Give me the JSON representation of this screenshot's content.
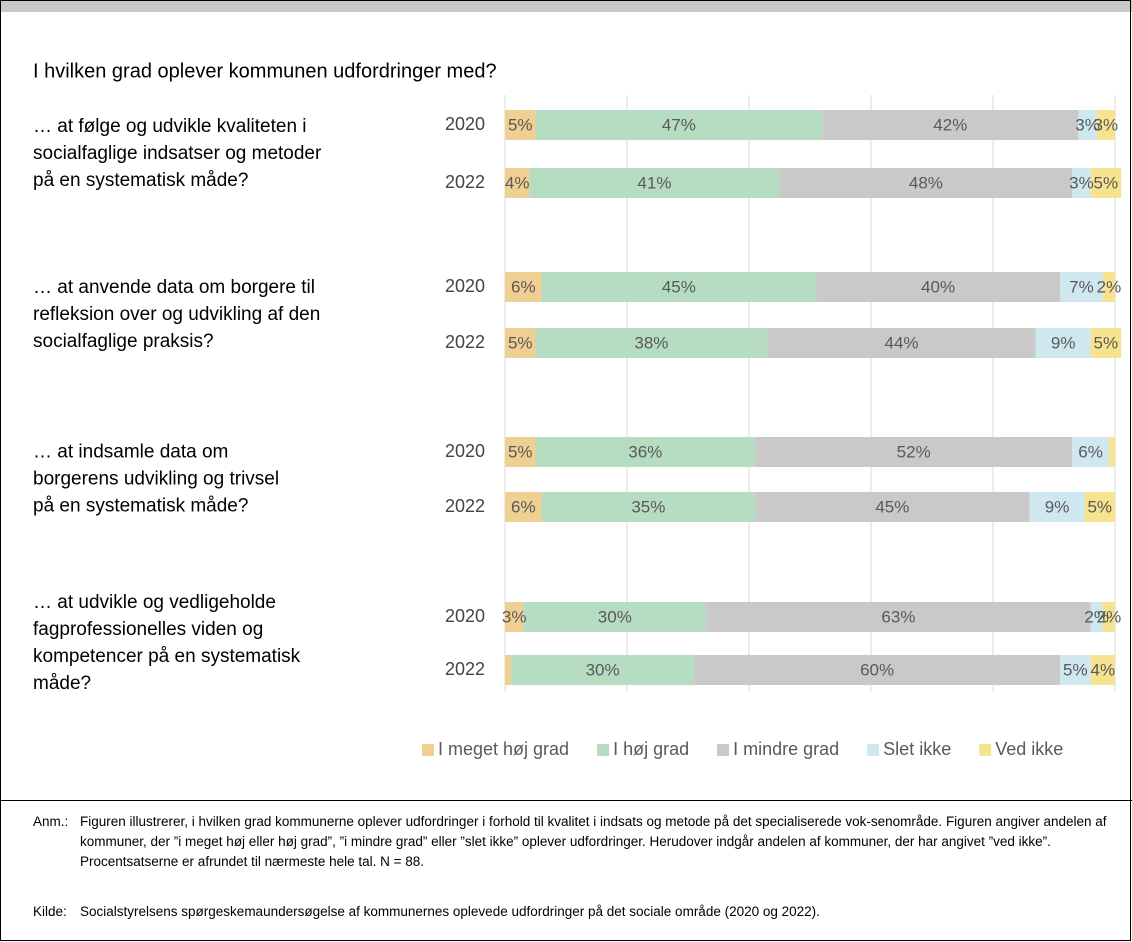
{
  "chart_data": {
    "type": "stacked-barh",
    "subtitle": "I hvilken grad oplever kommunen udfordringer med?",
    "groups": [
      {
        "label": [
          "… at følge og udvikle kvaliteten i",
          "socialfaglige indsatser og metoder",
          "på en systematisk måde?"
        ]
      },
      {
        "label": [
          "… at anvende data om borgere til",
          "refleksion over og udvikling af den",
          "socialfaglige praksis?"
        ]
      },
      {
        "label": [
          "… at indsamle data om",
          "borgerens udvikling og trivsel",
          "på en systematisk måde?"
        ]
      },
      {
        "label": [
          " … at udvikle og vedligeholde",
          "fagprofessionelles viden og",
          "kompetencer på en systematisk",
          "måde?"
        ]
      }
    ],
    "categories": [
      "2020",
      "2022",
      "2020",
      "2022",
      "2020",
      "2022",
      "2020",
      "2022"
    ],
    "series": [
      {
        "name": "I meget høj grad",
        "color": "#f0cf92",
        "values": [
          5,
          4,
          6,
          5,
          5,
          6,
          3,
          1
        ],
        "value_labels": [
          "5%",
          "4%",
          "6%",
          "5%",
          "5%",
          "6%",
          "3%",
          null
        ]
      },
      {
        "name": "I høj grad",
        "color": "#b6dcc1",
        "values": [
          47,
          41,
          45,
          38,
          36,
          35,
          30,
          30
        ],
        "value_labels": [
          "47%",
          "41%",
          "45%",
          "38%",
          "36%",
          "35%",
          "30%",
          "30%"
        ]
      },
      {
        "name": "I mindre grad",
        "color": "#c9c9c9",
        "values": [
          42,
          48,
          40,
          44,
          52,
          45,
          63,
          60
        ],
        "value_labels": [
          "42%",
          "48%",
          "40%",
          "44%",
          "52%",
          "45%",
          "63%",
          "60%"
        ]
      },
      {
        "name": "Slet ikke",
        "color": "#cfe8f0",
        "values": [
          3,
          3,
          7,
          9,
          6,
          9,
          2,
          5
        ],
        "value_labels": [
          "3%",
          "3%",
          "7%",
          "9%",
          "6%",
          "9%",
          "2%",
          "5%"
        ]
      },
      {
        "name": "Ved ikke",
        "color": "#f5e38f",
        "values": [
          3,
          5,
          2,
          5,
          1,
          5,
          2,
          4
        ],
        "value_labels": [
          "3%",
          "5%",
          "2%",
          "5%",
          null,
          "5%",
          "2%",
          "4%"
        ]
      }
    ],
    "xlim": [
      0,
      100
    ],
    "xticks": [
      0,
      20,
      40,
      60,
      80,
      100
    ],
    "grid": true,
    "legend": "bottom"
  },
  "notes": {
    "anm_label": "Anm.:",
    "anm_text": "Figuren illustrerer, i hvilken grad kommunerne oplever udfordringer i forhold til kvalitet i indsats og metode på det specialiserede vok-senområde. Figuren angiver andelen af kommuner, der ”i meget høj eller høj grad”, ”i mindre grad” eller ”slet ikke” oplever udfordringer. Herudover indgår andelen af kommuner, der har angivet ”ved ikke”. Procentsatserne er afrundet til nærmeste hele tal. N = 88.",
    "kilde_label": "Kilde:",
    "kilde_text": "Socialstyrelsens spørgeskemaundersøgelse af kommunernes oplevede udfordringer på det sociale område (2020 og 2022)."
  }
}
